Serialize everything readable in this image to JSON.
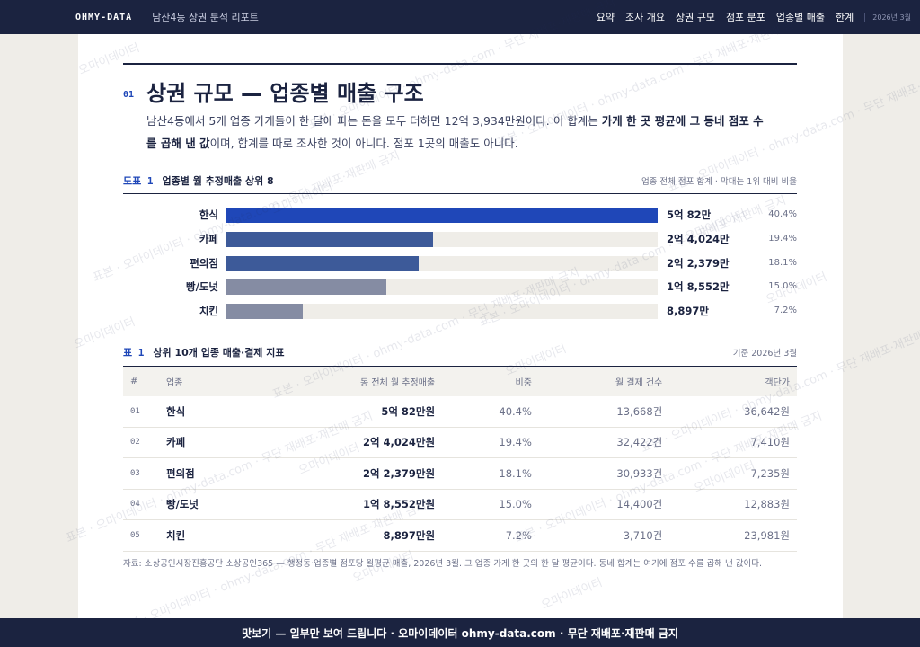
{
  "header": {
    "brand": "OHMY-DATA",
    "subtitle": "남산4동 상권 분석 리포트",
    "nav": [
      "요약",
      "조사 개요",
      "상권 규모",
      "점포 분포",
      "업종별 매출",
      "한계"
    ],
    "date": "2026년 3월"
  },
  "section": {
    "number": "01",
    "title": "상권 규모 — 업종별 매출 구조",
    "paragraph": [
      "남산4동에서 5개 업종 가게들이 한 달에 파는 돈을 모두 더하면 12억 3,934만원이다. 이 합계는 ",
      "가게 한 곳 평균에 그 동네 점포 수를 곱해 낸 값",
      "이며, 합계를 따로 조사한 것이 아니다. 점포 1곳의 매출도 아니다."
    ]
  },
  "chart_data": {
    "type": "bar",
    "orientation": "horizontal",
    "label": "도표 1",
    "title": "업종별 월 추정매출 상위 8",
    "note": "업종 전체 점포 합계 · 막대는 1위 대비 비율",
    "categories": [
      "한식",
      "카페",
      "편의점",
      "빵/도넛",
      "치킨"
    ],
    "values": [
      50082,
      24024,
      22379,
      18552,
      8897
    ],
    "value_labels": [
      "5억 82만",
      "2억 4,024만",
      "2억 2,379만",
      "1억 8,552만",
      "8,897만"
    ],
    "share_labels": [
      "40.4%",
      "19.4%",
      "18.1%",
      "15.0%",
      "7.2%"
    ],
    "colors": [
      "#1f47b8",
      "#3d5a99",
      "#3d5a99",
      "#858ca3",
      "#858ca3"
    ],
    "track_color": "#efede8"
  },
  "table": {
    "label": "표 1",
    "title": "상위 10개 업종 매출·결제 지표",
    "note": "기준 2026년 3월",
    "columns": [
      "#",
      "업종",
      "동 전체 월 추정매출",
      "비중",
      "월 결제 건수",
      "객단가"
    ],
    "rows": [
      [
        "01",
        "한식",
        "5억 82만원",
        "40.4%",
        "13,668건",
        "36,642원"
      ],
      [
        "02",
        "카페",
        "2억 4,024만원",
        "19.4%",
        "32,422건",
        "7,410원"
      ],
      [
        "03",
        "편의점",
        "2억 2,379만원",
        "18.1%",
        "30,933건",
        "7,235원"
      ],
      [
        "04",
        "빵/도넛",
        "1억 8,552만원",
        "15.0%",
        "14,400건",
        "12,883원"
      ],
      [
        "05",
        "치킨",
        "8,897만원",
        "7.2%",
        "3,710건",
        "23,981원"
      ]
    ]
  },
  "source": "자료: 소상공인시장진흥공단 소상공인365 — 행정동·업종별 점포당 월평균 매출, 2026년 3월. 그 업종 가게 한 곳의 한 달 평균이다. 동네 합계는 여기에 점포 수를 곱해 낸 값이다.",
  "watermarks": [
    "오마이데이터",
    "표본 · 오마이데이터 · ohmy-data.com · 무단 재배포·재판매 금지"
  ],
  "footer": "맛보기 — 일부만 보여 드립니다 · 오마이데이터 ohmy-data.com · 무단 재배포·재판매 금지"
}
